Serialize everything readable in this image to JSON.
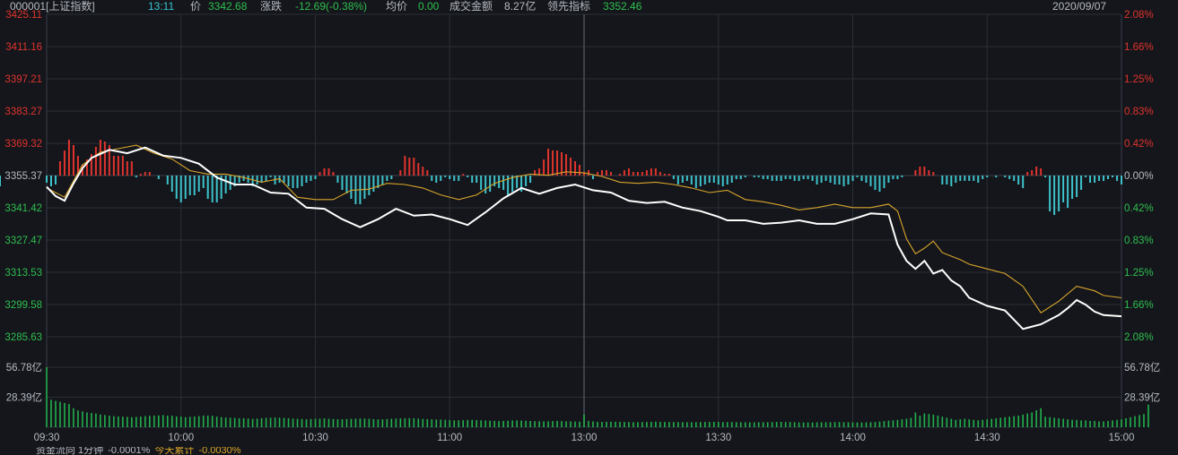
{
  "header": {
    "code": "000001[上证指数]",
    "time": "13:11",
    "price_label": "价",
    "price": "3342.68",
    "change_label": "涨跌",
    "change": "-12.69(-0.38%)",
    "avg_label": "均价",
    "avg": "0.00",
    "turnover_label": "成交金额",
    "turnover": "8.27亿",
    "leading_label": "领先指标",
    "leading": "3352.46",
    "date": "2020/09/07"
  },
  "bottom": {
    "label1": "资金流向 1分钟",
    "val1": "-0.0001%",
    "label2": "今天累计",
    "val2": "-0.0030%"
  },
  "colors": {
    "background": "#14161b",
    "grid": "#2a2e35",
    "up": "#e0332d",
    "down": "#3ec3cc",
    "price_line": "#ffffff",
    "leading_line": "#d9a52c",
    "volume": "#22b14c"
  },
  "chart_data": {
    "type": "line",
    "title": "000001[上证指数]",
    "prev_close": 3355.37,
    "ylim": [
      3285.63,
      3425.11
    ],
    "y_ticks_left": [
      "3425.11",
      "3411.16",
      "3397.21",
      "3383.27",
      "3369.32",
      "3355.37",
      "3341.42",
      "3327.47",
      "3313.53",
      "3299.58",
      "3285.63"
    ],
    "y_ticks_right": [
      "2.08%",
      "1.66%",
      "1.25%",
      "0.83%",
      "0.42%",
      "0.00%",
      "0.42%",
      "0.83%",
      "1.25%",
      "1.66%",
      "2.08%"
    ],
    "x_ticks": [
      "09:30",
      "10:00",
      "10:30",
      "11:00",
      "13:00",
      "13:30",
      "14:00",
      "14:30",
      "15:00"
    ],
    "volume_ticks": [
      "56.78亿",
      "28.39亿"
    ],
    "volume_max": 56.78,
    "series": [
      {
        "key": "price",
        "x_minutes": [
          0,
          2,
          4,
          6,
          8,
          10,
          14,
          18,
          22,
          26,
          30,
          34,
          38,
          42,
          46,
          50,
          54,
          58,
          62,
          66,
          70,
          74,
          78,
          82,
          86,
          90,
          94,
          98,
          102,
          106,
          110,
          114,
          118,
          122,
          126,
          130,
          134,
          138,
          142,
          146,
          150,
          152,
          156,
          160,
          164,
          168,
          172,
          176,
          180,
          184,
          188,
          190,
          192,
          194,
          196,
          198,
          200,
          202,
          204,
          206,
          210,
          214,
          218,
          222,
          226,
          228,
          230,
          232,
          234,
          236,
          240
        ],
        "values": [
          3350.5,
          3346.5,
          3344.5,
          3352,
          3358.5,
          3363,
          3366.5,
          3365,
          3367.5,
          3364,
          3363,
          3360.5,
          3354.5,
          3351.5,
          3351.5,
          3348,
          3347.5,
          3341.5,
          3341,
          3336.5,
          3333,
          3336.5,
          3341,
          3338,
          3338.5,
          3336.5,
          3334,
          3339.5,
          3345.5,
          3350,
          3347.5,
          3350,
          3351.5,
          3349,
          3348,
          3344.5,
          3343.5,
          3344,
          3341.5,
          3340,
          3337.5,
          3336,
          3336,
          3334.5,
          3335,
          3336,
          3334.5,
          3334.5,
          3336.5,
          3339,
          3338.5,
          3325.5,
          3318.5,
          3315,
          3318.5,
          3313,
          3314.5,
          3310,
          3307.5,
          3302.5,
          3299,
          3297,
          3289,
          3291,
          3295,
          3298,
          3301.5,
          3299.5,
          3296.5,
          3295,
          3294.5
        ]
      },
      {
        "key": "leading",
        "x_minutes": [
          0,
          4,
          8,
          12,
          16,
          20,
          24,
          28,
          32,
          36,
          40,
          44,
          48,
          52,
          56,
          60,
          64,
          68,
          72,
          76,
          80,
          84,
          88,
          92,
          96,
          100,
          104,
          108,
          112,
          116,
          120,
          124,
          128,
          132,
          136,
          140,
          144,
          148,
          152,
          156,
          160,
          164,
          168,
          172,
          176,
          180,
          184,
          188,
          190,
          192,
          194,
          196,
          198,
          200,
          202,
          204,
          206,
          210,
          214,
          218,
          222,
          226,
          230,
          234,
          236,
          240
        ],
        "values": [
          3350,
          3346,
          3360,
          3365.5,
          3367,
          3368.5,
          3365,
          3362.5,
          3357.5,
          3356,
          3356,
          3354.5,
          3352.5,
          3354,
          3346,
          3345,
          3345,
          3349,
          3349.5,
          3352,
          3351.5,
          3350,
          3347,
          3345,
          3347,
          3352,
          3354.5,
          3356,
          3355.5,
          3357,
          3356.5,
          3355,
          3352.5,
          3352,
          3352.5,
          3351.5,
          3350,
          3348,
          3349,
          3345,
          3344,
          3342.5,
          3340.5,
          3341.5,
          3343,
          3341.5,
          3341.5,
          3343,
          3340,
          3328,
          3321.5,
          3324,
          3327,
          3322,
          3320.5,
          3319,
          3317,
          3315,
          3313,
          3307.5,
          3296,
          3301,
          3307.5,
          3305.5,
          3303.5,
          3302.5
        ]
      },
      {
        "key": "money_flow",
        "minutes": [
          0,
          1,
          2,
          3,
          4,
          5,
          6,
          7,
          8,
          9,
          10,
          11,
          12,
          13,
          14,
          15,
          16,
          17,
          18,
          19,
          20,
          21,
          22,
          23,
          24,
          25,
          26,
          27,
          28,
          29,
          30,
          31,
          32,
          33,
          34,
          35,
          36,
          37,
          38,
          39,
          40,
          41,
          42,
          43,
          44,
          45,
          46,
          47,
          48,
          49,
          50,
          51,
          52,
          53,
          54,
          55,
          56,
          57,
          58,
          59,
          60,
          61,
          62,
          63,
          64,
          65,
          66,
          67,
          68,
          69,
          70,
          71,
          72,
          73,
          74,
          75,
          76,
          77,
          78,
          79,
          80,
          81,
          82,
          83,
          84,
          85,
          86,
          87,
          88,
          89,
          90,
          91,
          92,
          93,
          94,
          95,
          96,
          97,
          98,
          99,
          100,
          101,
          102,
          103,
          104,
          105,
          106,
          107,
          108,
          109,
          110,
          111,
          112,
          113,
          114,
          115,
          116,
          117,
          118,
          119,
          120,
          121,
          122,
          123,
          124,
          125,
          126,
          127,
          128,
          129,
          130,
          131,
          132,
          133,
          134,
          135,
          136,
          137,
          138,
          139,
          140,
          141,
          142,
          143,
          144,
          145,
          146,
          147,
          148,
          149,
          150,
          151,
          152,
          153,
          154,
          155,
          156,
          157,
          158,
          159,
          160,
          161,
          162,
          163,
          164,
          165,
          166,
          167,
          168,
          169,
          170,
          171,
          172,
          173,
          174,
          175,
          176,
          177,
          178,
          179,
          180,
          181,
          182,
          183,
          184,
          185,
          186,
          187,
          188,
          189,
          190,
          191,
          192,
          193,
          194,
          195,
          196,
          197,
          198,
          199,
          200,
          201,
          202,
          203,
          204,
          205,
          206,
          207,
          208,
          209,
          210,
          211,
          212,
          213,
          214,
          215,
          216,
          217,
          218,
          219,
          220,
          221,
          222,
          223,
          224,
          225,
          226,
          227,
          228,
          229,
          230,
          231,
          232,
          233,
          234,
          235,
          236,
          237,
          238,
          239,
          240
        ],
        "values": [
          -4,
          -6,
          -5,
          8,
          14,
          20,
          17,
          11,
          6,
          9,
          12,
          16,
          20,
          19,
          17,
          11,
          11,
          11,
          8,
          8,
          -1,
          1,
          2,
          2,
          0,
          -2,
          0,
          -5,
          -9,
          -13,
          -15,
          -13,
          -11,
          -11,
          -9,
          -7,
          -13,
          -15,
          -15,
          -13,
          -10,
          -8,
          -6,
          -4,
          -3,
          -4,
          -6,
          -5,
          -4,
          -3,
          -1,
          -5,
          -4,
          -4,
          -6,
          -7,
          -7,
          -6,
          -4,
          -3,
          -2,
          2,
          4,
          4,
          2,
          -4,
          -8,
          -10,
          -13,
          -16,
          -16,
          -13,
          -11,
          -9,
          -7,
          -5,
          -3,
          -2,
          0,
          3,
          11,
          10,
          10,
          7,
          5,
          3,
          -3,
          -4,
          -3,
          -1,
          -2,
          -3,
          -3,
          1,
          -1,
          -4,
          -4,
          -8,
          -10,
          -9,
          -6,
          -7,
          -8,
          -11,
          -9,
          -7,
          -9,
          -6,
          -4,
          3,
          4,
          9,
          15,
          14,
          14,
          13,
          12,
          10,
          8,
          6,
          2,
          3,
          -2,
          2,
          3,
          3,
          2,
          0,
          1,
          3,
          4,
          2,
          2,
          2,
          3,
          4,
          4,
          2,
          1,
          1,
          -2,
          -5,
          -4,
          -3,
          -5,
          -7,
          -6,
          -5,
          -4,
          -4,
          -5,
          -6,
          -5,
          -4,
          -2,
          -2,
          -1,
          0,
          -1,
          -1,
          -2,
          -2,
          -3,
          -3,
          -3,
          -2,
          -2,
          -3,
          -3,
          -2,
          -2,
          -3,
          -5,
          -4,
          -3,
          -4,
          -5,
          -5,
          -6,
          -5,
          -3,
          -1,
          -3,
          -4,
          -6,
          -8,
          -9,
          -7,
          -4,
          -2,
          -2,
          -1,
          0,
          0,
          3,
          5,
          5,
          3,
          2,
          0,
          -5,
          -5,
          -6,
          -4,
          -3,
          -3,
          -3,
          -3,
          -4,
          -2,
          -1,
          0,
          -1,
          0,
          -1,
          -2,
          -3,
          -5,
          -7,
          2,
          3,
          5,
          4,
          -1,
          -20,
          -22,
          -20,
          -15,
          -18,
          -13,
          -12,
          -8,
          -1,
          -4,
          -4,
          -3,
          -3,
          -2,
          -1,
          -3,
          -5,
          -6,
          -4,
          -2,
          0,
          -2,
          -1,
          0,
          -1,
          -2,
          -2,
          -3,
          -4,
          -5,
          -4,
          -2
        ]
      },
      {
        "key": "volume",
        "values": [
          56.78,
          26.0,
          25.0,
          24.0,
          23.0,
          22.0,
          18.0,
          16.0,
          15.0,
          14.0,
          13.5,
          13.0,
          12.0,
          11.5,
          11.0,
          10.5,
          10.2,
          10.0,
          9.8,
          9.5,
          9.8,
          10.0,
          10.5,
          10.8,
          11.0,
          11.2,
          11.5,
          11.0,
          10.8,
          10.2,
          10.0,
          9.5,
          9.8,
          10.2,
          10.5,
          11.0,
          11.0,
          10.8,
          10.0,
          9.5,
          9.2,
          9.0,
          8.8,
          8.5,
          8.5,
          8.3,
          8.0,
          8.2,
          8.5,
          8.8,
          9.0,
          9.2,
          9.0,
          8.8,
          8.5,
          8.2,
          8.0,
          7.8,
          7.5,
          7.8,
          8.0,
          8.2,
          8.4,
          8.0,
          7.8,
          7.5,
          7.6,
          7.8,
          8.0,
          8.1,
          8.3,
          8.2,
          8.0,
          7.6,
          7.4,
          7.5,
          7.8,
          8.0,
          8.2,
          8.4,
          8.5,
          8.6,
          8.5,
          8.2,
          7.9,
          7.6,
          7.5,
          7.3,
          7.2,
          7.0,
          6.8,
          6.5,
          6.6,
          6.7,
          6.9,
          7.0,
          6.8,
          6.6,
          6.4,
          6.2,
          6.0,
          5.8,
          6.0,
          6.2,
          6.4,
          6.5,
          6.3,
          6.1,
          5.9,
          5.8,
          5.7,
          5.5,
          5.6,
          5.8,
          6.0,
          5.8,
          5.6,
          5.5,
          5.4,
          5.2,
          12.0,
          6.0,
          5.5,
          5.0,
          5.0,
          5.1,
          5.2,
          5.2,
          5.1,
          5.0,
          4.9,
          4.8,
          4.8,
          4.9,
          5.0,
          5.1,
          5.2,
          5.1,
          5.0,
          5.0,
          4.9,
          4.8,
          4.8,
          4.7,
          4.7,
          4.8,
          4.9,
          5.0,
          5.0,
          5.1,
          5.0,
          4.9,
          4.9,
          4.9,
          4.8,
          4.7,
          4.7,
          4.6,
          4.6,
          4.7,
          4.8,
          4.8,
          4.9,
          5.0,
          5.1,
          5.0,
          5.0,
          4.8,
          4.6,
          4.5,
          4.5,
          4.5,
          4.6,
          4.7,
          4.8,
          4.8,
          4.9,
          4.9,
          4.8,
          4.7,
          4.6,
          4.5,
          4.5,
          4.6,
          4.8,
          5.0,
          5.4,
          5.8,
          6.2,
          6.6,
          7.0,
          7.5,
          8.0,
          9.0,
          14.0,
          11.0,
          13.0,
          12.5,
          12.0,
          11.0,
          10.0,
          9.0,
          8.0,
          7.0,
          7.5,
          8.0,
          7.5,
          7.0,
          6.5,
          7.0,
          7.5,
          8.0,
          8.5,
          9.0,
          9.5,
          10.0,
          10.5,
          11.0,
          12.0,
          13.0,
          14.0,
          16.0,
          18.0,
          10.0,
          9.5,
          9.0,
          8.5,
          8.0,
          7.5,
          7.0,
          7.0,
          6.5,
          6.5,
          6.0,
          6.0,
          5.5,
          5.5,
          6.0,
          6.5,
          7.0,
          7.5,
          8.5,
          9.5,
          10.5,
          11.5,
          12.5,
          21.5
        ]
      }
    ]
  }
}
